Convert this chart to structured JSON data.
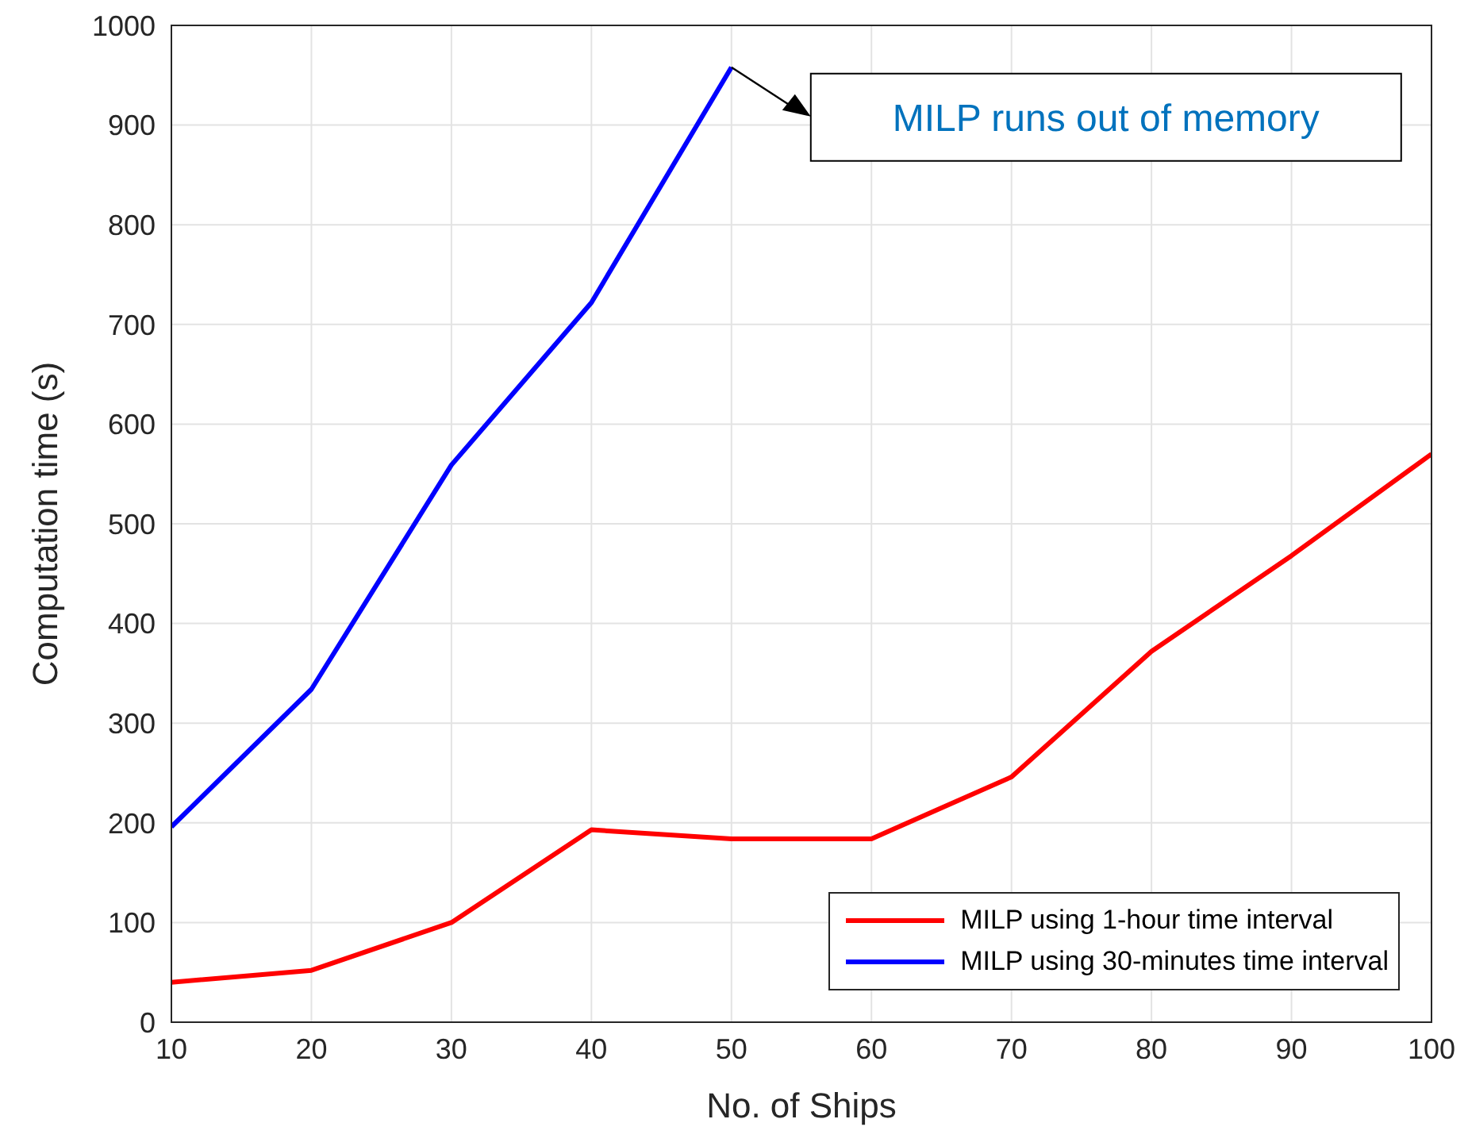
{
  "chart_data": {
    "type": "line",
    "xlabel": "No. of Ships",
    "ylabel": "Computation time (s)",
    "x": [
      10,
      20,
      30,
      40,
      50,
      60,
      70,
      80,
      90,
      100
    ],
    "series": [
      {
        "name": "MILP using 1-hour time interval",
        "color": "#ff0000",
        "values": [
          40,
          52,
          100,
          193,
          184,
          184,
          246,
          372,
          468,
          570
        ]
      },
      {
        "name": "MILP using 30-minutes time interval",
        "color": "#0000ff",
        "values": [
          196,
          334,
          559,
          722,
          958,
          null,
          null,
          null,
          null,
          null
        ]
      }
    ],
    "xlim": [
      10,
      100
    ],
    "xticks": [
      10,
      20,
      30,
      40,
      50,
      60,
      70,
      80,
      90,
      100
    ],
    "ylim": [
      0,
      1000
    ],
    "yticks": [
      0,
      100,
      200,
      300,
      400,
      500,
      600,
      700,
      800,
      900,
      1000
    ],
    "grid": true,
    "legend": "bottom right",
    "marker": "none",
    "line_style": "solid",
    "annotations": [
      "MILP runs out of memory"
    ]
  }
}
